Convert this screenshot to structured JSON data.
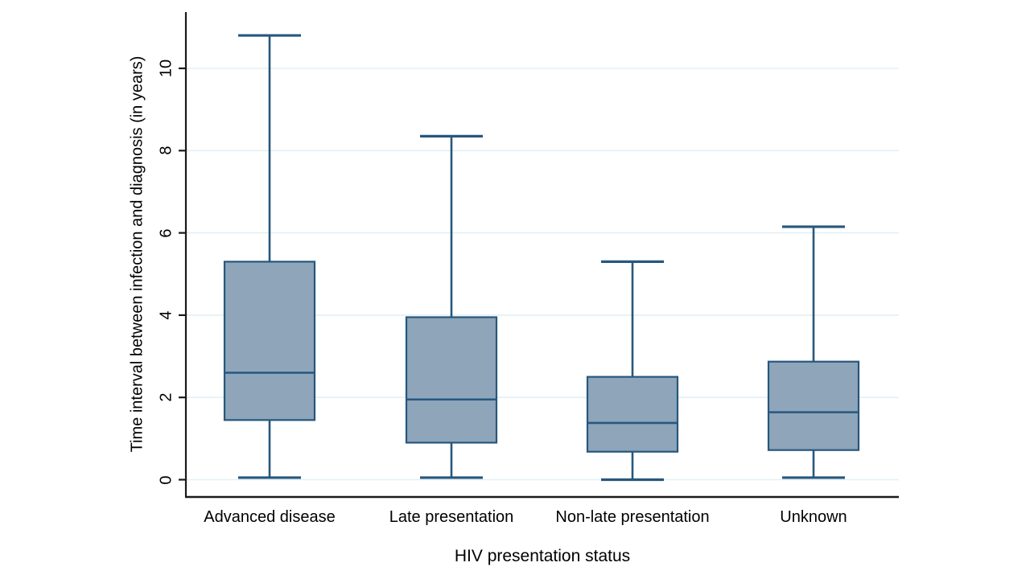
{
  "chart_data": {
    "type": "box",
    "title": "",
    "xlabel": "HIV presentation status",
    "ylabel": "Time interval between infection and diagnosis (in years)",
    "categories": [
      "Advanced disease",
      "Late presentation",
      "Non-late presentation",
      "Unknown"
    ],
    "series": [
      {
        "name": "Advanced disease",
        "whisker_low": 0.05,
        "q1": 1.45,
        "median": 2.6,
        "q3": 5.3,
        "whisker_high": 10.8
      },
      {
        "name": "Late presentation",
        "whisker_low": 0.05,
        "q1": 0.9,
        "median": 1.95,
        "q3": 3.95,
        "whisker_high": 8.35
      },
      {
        "name": "Non-late presentation",
        "whisker_low": 0.0,
        "q1": 0.68,
        "median": 1.38,
        "q3": 2.5,
        "whisker_high": 5.3
      },
      {
        "name": "Unknown",
        "whisker_low": 0.05,
        "q1": 0.72,
        "median": 1.64,
        "q3": 2.87,
        "whisker_high": 6.15
      }
    ],
    "yticks": [
      0,
      2,
      4,
      6,
      8,
      10
    ],
    "ylim": [
      0,
      11.4
    ],
    "grid": true,
    "legend": "none",
    "colors": {
      "box_fill": "#8ea5ba",
      "box_stroke": "#27577e",
      "whisker": "#27577e",
      "gridline": "#e2f0f6",
      "axis": "#1a1a1a",
      "text": "#000000",
      "background": "#ffffff"
    }
  }
}
